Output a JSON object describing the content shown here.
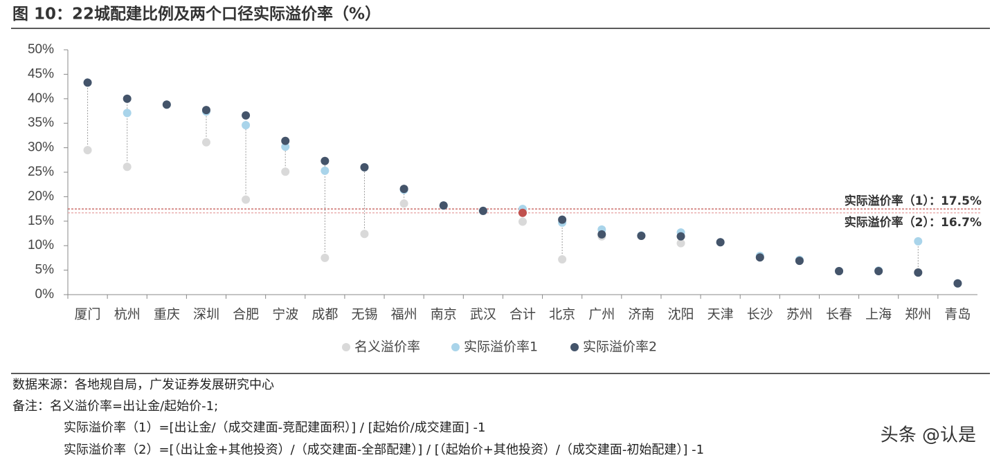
{
  "chart_data": {
    "type": "dotplot",
    "title": "图 10：22城配建比例及两个口径实际溢价率（%）",
    "categories": [
      "厦门",
      "杭州",
      "重庆",
      "深圳",
      "合肥",
      "宁波",
      "成都",
      "无锡",
      "福州",
      "南京",
      "武汉",
      "合计",
      "北京",
      "广州",
      "济南",
      "沈阳",
      "天津",
      "长沙",
      "苏州",
      "长春",
      "上海",
      "郑州",
      "青岛"
    ],
    "series": [
      {
        "name": "名义溢价率",
        "color": "#d9d9d9",
        "values": [
          29.5,
          26.1,
          38.8,
          31.1,
          19.4,
          25.1,
          7.5,
          12.4,
          18.6,
          18.2,
          17.1,
          14.9,
          7.2,
          11.9,
          12.0,
          10.5,
          10.7,
          7.6,
          7.1,
          4.8,
          4.9,
          4.6,
          2.3
        ]
      },
      {
        "name": "实际溢价率1",
        "color": "#a9d4ea",
        "values": [
          43.3,
          37.1,
          38.8,
          37.4,
          34.6,
          30.2,
          25.3,
          26.0,
          21.4,
          18.2,
          17.1,
          17.5,
          14.7,
          13.3,
          12.1,
          12.7,
          10.7,
          7.9,
          7.1,
          4.8,
          4.9,
          10.9,
          2.3
        ]
      },
      {
        "name": "实际溢价率2",
        "color": "#44546a",
        "values": [
          43.3,
          40.0,
          38.8,
          37.7,
          36.6,
          31.4,
          27.3,
          26.0,
          21.6,
          18.2,
          17.1,
          16.7,
          15.3,
          12.3,
          12.0,
          11.9,
          10.7,
          7.6,
          6.9,
          4.8,
          4.8,
          4.5,
          2.3
        ]
      }
    ],
    "highlight": {
      "category": "合计",
      "color": "#c0504d"
    },
    "reference_lines": [
      {
        "value": 17.5,
        "label": "实际溢价率（1）：17.5%",
        "color": "#c0504d"
      },
      {
        "value": 16.7,
        "label": "实际溢价率（2）：16.7%",
        "color": "#e6a3a3"
      }
    ],
    "ylim": [
      0,
      50
    ],
    "yticks": [
      {
        "value": 0,
        "label": "0%"
      },
      {
        "value": 5,
        "label": "5%"
      },
      {
        "value": 10,
        "label": "10%"
      },
      {
        "value": 15,
        "label": "15%"
      },
      {
        "value": 20,
        "label": "20%"
      },
      {
        "value": 25,
        "label": "25%"
      },
      {
        "value": 30,
        "label": "30%"
      },
      {
        "value": 35,
        "label": "35%"
      },
      {
        "value": 40,
        "label": "40%"
      },
      {
        "value": 45,
        "label": "45%"
      },
      {
        "value": 50,
        "label": "50%"
      }
    ],
    "source": "数据来源：各地规自局，广发证券发展研究中心",
    "notes": [
      "备注：名义溢价率=出让金/起始价-1;",
      "实际溢价率（1）=[出让金/（成交建面-竞配建面积）] / [起始价/成交建面] -1",
      "实际溢价率（2）=[（出让金+其他投资）/（成交建面-全部配建）] / [（起始价+其他投资）/（成交建面-初始配建）] -1"
    ],
    "watermark": "头条 @认是"
  }
}
